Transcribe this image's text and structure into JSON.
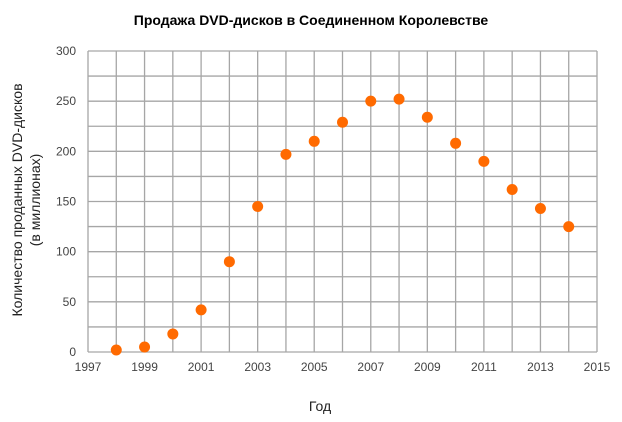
{
  "chart_data": {
    "type": "scatter",
    "title": "Продажа DVD-дисков в Соединенном Королевстве",
    "xlabel": "Год",
    "ylabel_lines": [
      "Количество проданных DVD-дисков",
      "(в миллионах)"
    ],
    "x": [
      1998,
      1999,
      2000,
      2001,
      2002,
      2003,
      2004,
      2005,
      2006,
      2007,
      2008,
      2009,
      2010,
      2011,
      2012,
      2013,
      2014
    ],
    "y": [
      2,
      5,
      18,
      42,
      90,
      145,
      197,
      210,
      229,
      250,
      252,
      234,
      208,
      190,
      162,
      143,
      125
    ],
    "xlim": [
      1997,
      2015
    ],
    "ylim": [
      0,
      300
    ],
    "xticks": [
      "1997",
      "1999",
      "2001",
      "2003",
      "2005",
      "2007",
      "2009",
      "2011",
      "2013",
      "2015"
    ],
    "yticks": [
      "0",
      "50",
      "100",
      "150",
      "200",
      "250",
      "300"
    ],
    "grid": true,
    "grid_x_step": 1,
    "grid_y_step": 25,
    "marker_color": "#ff6a00",
    "grid_color": "#a6a6a6"
  }
}
